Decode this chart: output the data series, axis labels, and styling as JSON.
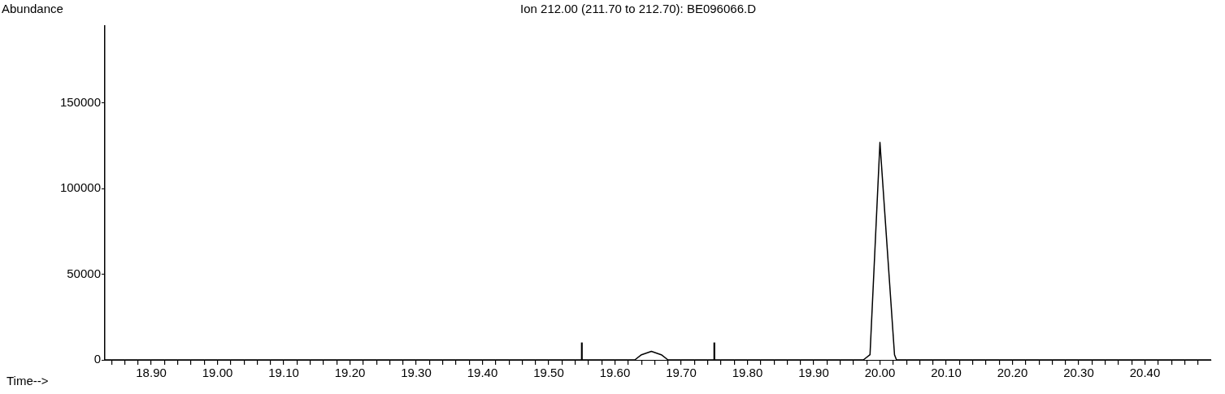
{
  "chart_data": {
    "type": "line",
    "title": "Ion 212.00 (211.70 to 212.70): BE096066.D",
    "xlabel": "Time-->",
    "ylabel": "Abundance",
    "x": [
      18.83,
      19.63,
      19.64,
      19.655,
      19.67,
      19.68,
      19.975,
      19.985,
      20.0,
      20.022,
      20.025,
      20.5
    ],
    "series": [
      {
        "color": "#000000",
        "values": [
          0,
          0,
          3000,
          5000,
          3000,
          0,
          0,
          3000,
          127000,
          3000,
          0,
          0
        ]
      },
      {
        "type": "bar",
        "color": "#000000",
        "x": [
          19.55,
          19.75
        ],
        "values": [
          10000,
          10000
        ]
      }
    ],
    "xlim": [
      18.83,
      20.5
    ],
    "ylim": [
      0,
      195000
    ],
    "yticks": [
      0,
      50000,
      100000,
      150000
    ],
    "xticks": [
      {
        "value": 18.84,
        "label": null
      },
      {
        "value": 18.86,
        "label": null
      },
      {
        "value": 18.88,
        "label": null
      },
      {
        "value": 18.9,
        "label": "18.90"
      },
      {
        "value": 18.92,
        "label": null
      },
      {
        "value": 18.94,
        "label": null
      },
      {
        "value": 18.96,
        "label": null
      },
      {
        "value": 18.98,
        "label": null
      },
      {
        "value": 19.0,
        "label": "19.00"
      },
      {
        "value": 19.02,
        "label": null
      },
      {
        "value": 19.04,
        "label": null
      },
      {
        "value": 19.06,
        "label": null
      },
      {
        "value": 19.08,
        "label": null
      },
      {
        "value": 19.1,
        "label": "19.10"
      },
      {
        "value": 19.12,
        "label": null
      },
      {
        "value": 19.14,
        "label": null
      },
      {
        "value": 19.16,
        "label": null
      },
      {
        "value": 19.18,
        "label": null
      },
      {
        "value": 19.2,
        "label": "19.20"
      },
      {
        "value": 19.22,
        "label": null
      },
      {
        "value": 19.24,
        "label": null
      },
      {
        "value": 19.26,
        "label": null
      },
      {
        "value": 19.28,
        "label": null
      },
      {
        "value": 19.3,
        "label": "19.30"
      },
      {
        "value": 19.32,
        "label": null
      },
      {
        "value": 19.34,
        "label": null
      },
      {
        "value": 19.36,
        "label": null
      },
      {
        "value": 19.38,
        "label": null
      },
      {
        "value": 19.4,
        "label": "19.40"
      },
      {
        "value": 19.42,
        "label": null
      },
      {
        "value": 19.44,
        "label": null
      },
      {
        "value": 19.46,
        "label": null
      },
      {
        "value": 19.48,
        "label": null
      },
      {
        "value": 19.5,
        "label": "19.50"
      },
      {
        "value": 19.52,
        "label": null
      },
      {
        "value": 19.54,
        "label": null
      },
      {
        "value": 19.56,
        "label": null
      },
      {
        "value": 19.58,
        "label": null
      },
      {
        "value": 19.6,
        "label": "19.60"
      },
      {
        "value": 19.62,
        "label": null
      },
      {
        "value": 19.64,
        "label": null
      },
      {
        "value": 19.66,
        "label": null
      },
      {
        "value": 19.68,
        "label": null
      },
      {
        "value": 19.7,
        "label": "19.70"
      },
      {
        "value": 19.72,
        "label": null
      },
      {
        "value": 19.74,
        "label": null
      },
      {
        "value": 19.76,
        "label": null
      },
      {
        "value": 19.78,
        "label": null
      },
      {
        "value": 19.8,
        "label": "19.80"
      },
      {
        "value": 19.82,
        "label": null
      },
      {
        "value": 19.84,
        "label": null
      },
      {
        "value": 19.86,
        "label": null
      },
      {
        "value": 19.88,
        "label": null
      },
      {
        "value": 19.9,
        "label": "19.90"
      },
      {
        "value": 19.92,
        "label": null
      },
      {
        "value": 19.94,
        "label": null
      },
      {
        "value": 19.96,
        "label": null
      },
      {
        "value": 19.98,
        "label": null
      },
      {
        "value": 20.0,
        "label": "20.00"
      },
      {
        "value": 20.02,
        "label": null
      },
      {
        "value": 20.04,
        "label": null
      },
      {
        "value": 20.06,
        "label": null
      },
      {
        "value": 20.08,
        "label": null
      },
      {
        "value": 20.1,
        "label": "20.10"
      },
      {
        "value": 20.12,
        "label": null
      },
      {
        "value": 20.14,
        "label": null
      },
      {
        "value": 20.16,
        "label": null
      },
      {
        "value": 20.18,
        "label": null
      },
      {
        "value": 20.2,
        "label": "20.20"
      },
      {
        "value": 20.22,
        "label": null
      },
      {
        "value": 20.24,
        "label": null
      },
      {
        "value": 20.26,
        "label": null
      },
      {
        "value": 20.28,
        "label": null
      },
      {
        "value": 20.3,
        "label": "20.30"
      },
      {
        "value": 20.32,
        "label": null
      },
      {
        "value": 20.34,
        "label": null
      },
      {
        "value": 20.36,
        "label": null
      },
      {
        "value": 20.38,
        "label": null
      },
      {
        "value": 20.4,
        "label": "20.40"
      },
      {
        "value": 20.42,
        "label": null
      },
      {
        "value": 20.44,
        "label": null
      },
      {
        "value": 20.46,
        "label": null
      },
      {
        "value": 20.48,
        "label": null
      }
    ],
    "grid": false,
    "legend": false,
    "marker": "none",
    "line_style": "solid"
  }
}
